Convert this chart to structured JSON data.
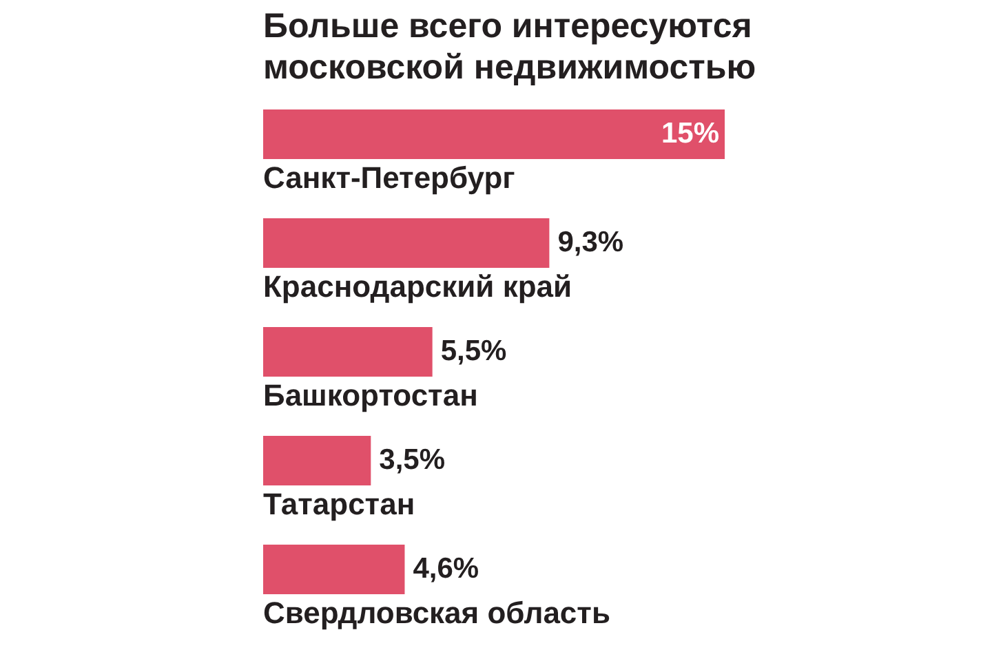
{
  "chart_data": {
    "type": "bar",
    "orientation": "horizontal",
    "title": "Больше всего интересуются\nмосковской недвижимостью",
    "categories": [
      "Санкт-Петербург",
      "Краснодарский край",
      "Башкортостан",
      "Татарстан",
      "Свердловская область"
    ],
    "values": [
      15,
      9.3,
      5.5,
      3.5,
      4.6
    ],
    "value_labels": [
      "15%",
      "9,3%",
      "5,5%",
      "3,5%",
      "4,6%"
    ],
    "color": "#e0506a"
  }
}
